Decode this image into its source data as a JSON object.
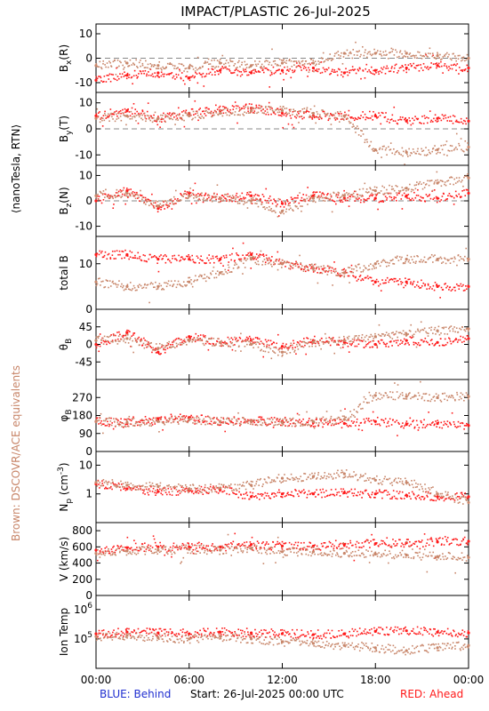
{
  "title": "IMPACT/PLASTIC   26-Jul-2025",
  "left_labels": {
    "units": "⟨nanoTesla, RTN⟩",
    "brown_note": "Brown: DSCOVR/ACE equivalents"
  },
  "footer": {
    "blue": "BLUE: Behind",
    "start": "Start: 26-Jul-2025 00:00 UTC",
    "red": "RED: Ahead"
  },
  "colors": {
    "ahead": "#ff1a1a",
    "dscovr": "#c8866a",
    "blue": "#1f2ed0",
    "axis": "#000000",
    "zero_line": "#888888"
  },
  "x_axis": {
    "ticks": [
      "00:00",
      "06:00",
      "12:00",
      "18:00",
      "00:00"
    ],
    "range_hours": [
      0,
      24
    ]
  },
  "chart_data": [
    {
      "type": "scatter",
      "name": "bx",
      "ylabel": "B_x(R)",
      "ylim": [
        -14,
        14
      ],
      "yticks": [
        "10",
        "0",
        "-10"
      ],
      "zero_line": true,
      "series": [
        {
          "name": "Ahead",
          "color": "red",
          "x": [
            0,
            2,
            4,
            6,
            8,
            10,
            12,
            14,
            16,
            18,
            20,
            22,
            24
          ],
          "y": [
            -9,
            -7,
            -6,
            -8,
            -5,
            -6,
            -5,
            -4,
            -6,
            -5,
            -4,
            -3,
            -4
          ]
        },
        {
          "name": "DSCOVR/ACE",
          "color": "brown",
          "x": [
            0,
            2,
            4,
            6,
            8,
            10,
            12,
            14,
            16,
            18,
            20,
            22,
            24
          ],
          "y": [
            -3,
            -2,
            -3,
            -4,
            -2,
            -3,
            -2,
            -2,
            2,
            2,
            2,
            1,
            0
          ]
        }
      ]
    },
    {
      "type": "scatter",
      "name": "by",
      "ylabel": "B_y(T)",
      "ylim": [
        -14,
        14
      ],
      "yticks": [
        "10",
        "0",
        "-10"
      ],
      "zero_line": true,
      "series": [
        {
          "name": "Ahead",
          "color": "red",
          "x": [
            0,
            2,
            4,
            6,
            8,
            10,
            12,
            14,
            16,
            18,
            20,
            22,
            24
          ],
          "y": [
            5,
            7,
            4,
            6,
            7,
            8,
            6,
            5,
            5,
            5,
            3,
            4,
            3
          ]
        },
        {
          "name": "DSCOVR/ACE",
          "color": "brown",
          "x": [
            0,
            2,
            4,
            6,
            8,
            10,
            12,
            14,
            16,
            18,
            20,
            22,
            24
          ],
          "y": [
            4,
            5,
            4,
            5,
            6,
            7,
            7,
            6,
            5,
            -8,
            -9,
            -8,
            -7
          ]
        }
      ]
    },
    {
      "type": "scatter",
      "name": "bz",
      "ylabel": "B_z(N)",
      "ylim": [
        -14,
        14
      ],
      "yticks": [
        "10",
        "0",
        "-10"
      ],
      "zero_line": true,
      "series": [
        {
          "name": "Ahead",
          "color": "red",
          "x": [
            0,
            2,
            4,
            6,
            8,
            10,
            12,
            14,
            16,
            18,
            20,
            22,
            24
          ],
          "y": [
            0,
            4,
            -3,
            3,
            1,
            2,
            -1,
            2,
            1,
            1,
            2,
            1,
            3
          ]
        },
        {
          "name": "DSCOVR/ACE",
          "color": "brown",
          "x": [
            0,
            2,
            4,
            6,
            8,
            10,
            12,
            14,
            16,
            18,
            20,
            22,
            24
          ],
          "y": [
            2,
            3,
            -2,
            2,
            1,
            0,
            -4,
            1,
            2,
            4,
            5,
            7,
            9
          ]
        }
      ]
    },
    {
      "type": "scatter",
      "name": "btotal",
      "ylabel": "total B",
      "ylim": [
        0,
        16
      ],
      "yticks": [
        "10",
        "0"
      ],
      "zero_line": false,
      "series": [
        {
          "name": "Ahead",
          "color": "red",
          "x": [
            0,
            2,
            4,
            6,
            8,
            10,
            12,
            14,
            16,
            18,
            20,
            22,
            24
          ],
          "y": [
            12,
            12,
            11,
            11,
            11,
            12,
            10,
            9,
            8,
            6,
            6,
            5,
            5
          ]
        },
        {
          "name": "DSCOVR/ACE",
          "color": "brown",
          "x": [
            0,
            2,
            4,
            6,
            8,
            10,
            12,
            14,
            16,
            18,
            20,
            22,
            24
          ],
          "y": [
            6,
            5,
            5,
            6,
            8,
            11,
            10,
            9,
            8,
            10,
            11,
            11,
            11
          ]
        }
      ]
    },
    {
      "type": "scatter",
      "name": "theta",
      "ylabel": "θ_B",
      "ylim": [
        -90,
        90
      ],
      "yticks": [
        "45",
        "0",
        "-45"
      ],
      "zero_line": false,
      "series": [
        {
          "name": "Ahead",
          "color": "red",
          "x": [
            0,
            2,
            4,
            6,
            8,
            10,
            12,
            14,
            16,
            18,
            20,
            22,
            24
          ],
          "y": [
            0,
            30,
            -20,
            20,
            5,
            10,
            -5,
            10,
            5,
            0,
            10,
            5,
            15
          ]
        },
        {
          "name": "DSCOVR/ACE",
          "color": "brown",
          "x": [
            0,
            2,
            4,
            6,
            8,
            10,
            12,
            14,
            16,
            18,
            20,
            22,
            24
          ],
          "y": [
            10,
            15,
            -10,
            10,
            5,
            0,
            -20,
            5,
            10,
            20,
            25,
            35,
            40
          ]
        }
      ]
    },
    {
      "type": "scatter",
      "name": "phi",
      "ylabel": "φ_B",
      "ylim": [
        0,
        360
      ],
      "yticks": [
        "270",
        "180",
        "90",
        "0"
      ],
      "zero_line": false,
      "series": [
        {
          "name": "Ahead",
          "color": "red",
          "x": [
            0,
            2,
            4,
            6,
            8,
            10,
            12,
            14,
            16,
            18,
            20,
            22,
            24
          ],
          "y": [
            150,
            140,
            160,
            170,
            150,
            155,
            150,
            145,
            140,
            150,
            135,
            140,
            130
          ]
        },
        {
          "name": "DSCOVR/ACE",
          "color": "brown",
          "x": [
            0,
            2,
            4,
            6,
            8,
            10,
            12,
            14,
            16,
            18,
            20,
            22,
            24
          ],
          "y": [
            150,
            145,
            150,
            160,
            150,
            150,
            145,
            150,
            160,
            280,
            275,
            270,
            275
          ]
        }
      ]
    },
    {
      "type": "scatter",
      "name": "np",
      "ylabel": "N_p (cm^-3)",
      "yscale": "log",
      "ylim": [
        0.1,
        30
      ],
      "yticks": [
        "10",
        "1"
      ],
      "zero_line": false,
      "series": [
        {
          "name": "Ahead",
          "color": "red",
          "x": [
            0,
            2,
            4,
            6,
            8,
            10,
            12,
            14,
            16,
            18,
            20,
            22,
            24
          ],
          "y": [
            2.2,
            1.5,
            1.2,
            1.3,
            1.4,
            0.8,
            1.0,
            1.0,
            1.1,
            1.0,
            0.9,
            0.8,
            0.8
          ]
        },
        {
          "name": "DSCOVR/ACE",
          "color": "brown",
          "x": [
            0,
            2,
            4,
            6,
            8,
            10,
            12,
            14,
            16,
            18,
            20,
            22,
            24
          ],
          "y": [
            2.5,
            2.0,
            1.8,
            1.5,
            1.6,
            2.0,
            3.5,
            4.0,
            5.0,
            3.0,
            2.5,
            1.0,
            0.5
          ]
        }
      ]
    },
    {
      "type": "scatter",
      "name": "v",
      "ylabel": "V (km/s)",
      "ylim": [
        0,
        900
      ],
      "yticks": [
        "800",
        "600",
        "400",
        "200",
        "0"
      ],
      "zero_line": false,
      "series": [
        {
          "name": "Ahead",
          "color": "red",
          "x": [
            0,
            2,
            4,
            6,
            8,
            10,
            12,
            14,
            16,
            18,
            20,
            22,
            24
          ],
          "y": [
            560,
            590,
            600,
            600,
            600,
            630,
            610,
            610,
            630,
            640,
            650,
            660,
            670
          ]
        },
        {
          "name": "DSCOVR/ACE",
          "color": "brown",
          "x": [
            0,
            2,
            4,
            6,
            8,
            10,
            12,
            14,
            16,
            18,
            20,
            22,
            24
          ],
          "y": [
            520,
            550,
            560,
            570,
            560,
            580,
            540,
            540,
            520,
            510,
            500,
            480,
            470
          ]
        }
      ]
    },
    {
      "type": "scatter",
      "name": "temp",
      "ylabel": "Ion Temp",
      "yscale": "log",
      "ylim": [
        10000,
        3000000
      ],
      "yticks": [
        "10^6",
        "10^5"
      ],
      "zero_line": false,
      "series": [
        {
          "name": "Ahead",
          "color": "red",
          "x": [
            0,
            2,
            4,
            6,
            8,
            10,
            12,
            14,
            16,
            18,
            20,
            22,
            24
          ],
          "y": [
            150000,
            170000,
            160000,
            150000,
            170000,
            160000,
            150000,
            140000,
            150000,
            180000,
            190000,
            170000,
            160000
          ]
        },
        {
          "name": "DSCOVR/ACE",
          "color": "brown",
          "x": [
            0,
            2,
            4,
            6,
            8,
            10,
            12,
            14,
            16,
            18,
            20,
            22,
            24
          ],
          "y": [
            120000,
            130000,
            110000,
            100000,
            120000,
            100000,
            80000,
            70000,
            60000,
            50000,
            40000,
            50000,
            60000
          ]
        }
      ]
    }
  ]
}
